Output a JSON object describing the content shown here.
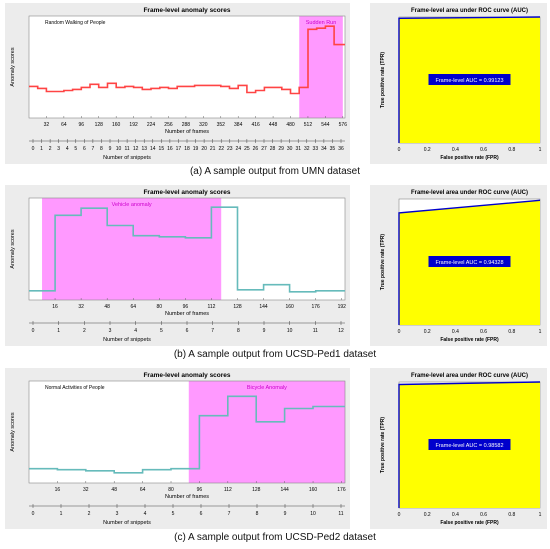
{
  "colors": {
    "panel_bg": "#ececec",
    "anomaly_region": "#ff99ff",
    "roc_fill": "#ffff00",
    "roc_line": "#0000cc",
    "auc_box": "#0000cc",
    "score_line": "#ff4444",
    "score_line_teal": "#66bbbb"
  },
  "rows": [
    {
      "caption": "(a) A sample output from UMN dataset",
      "score_chart": {
        "type": "line",
        "title": "Frame-level anomaly scores",
        "scene_label": "Random Walking of People",
        "anomaly_label": "Sudden Run",
        "xlabel": "Number of frames",
        "ylabel": "Anomaly scores",
        "snippet_label": "Number of snippets",
        "xlim": [
          0,
          580
        ],
        "ylim": [
          0,
          1
        ],
        "frame_ticks": [
          32,
          64,
          96,
          128,
          160,
          192,
          224,
          256,
          288,
          320,
          352,
          384,
          416,
          448,
          480,
          512,
          544,
          576
        ],
        "snippet_ticks": [
          "0",
          "1",
          "2",
          "3",
          "4",
          "5",
          "6",
          "7",
          "8",
          "9",
          "10",
          "11",
          "12",
          "13",
          "14",
          "15",
          "16",
          "17",
          "18",
          "19",
          "20",
          "21",
          "22",
          "23",
          "24",
          "25",
          "26",
          "27",
          "28",
          "29",
          "30",
          "31",
          "32",
          "33",
          "34",
          "35",
          "36"
        ],
        "anomaly_region": [
          496,
          576
        ],
        "line_color": "#ff4444",
        "x": [
          0,
          16,
          32,
          48,
          64,
          80,
          96,
          112,
          128,
          144,
          160,
          176,
          192,
          208,
          224,
          240,
          256,
          272,
          288,
          304,
          320,
          336,
          352,
          368,
          384,
          400,
          416,
          432,
          448,
          464,
          480,
          496,
          512,
          528,
          544,
          560,
          576
        ],
        "values": [
          0.31,
          0.29,
          0.26,
          0.26,
          0.27,
          0.28,
          0.3,
          0.33,
          0.3,
          0.34,
          0.3,
          0.31,
          0.3,
          0.28,
          0.29,
          0.3,
          0.29,
          0.31,
          0.31,
          0.32,
          0.32,
          0.32,
          0.31,
          0.29,
          0.32,
          0.25,
          0.27,
          0.3,
          0.3,
          0.28,
          0.24,
          0.3,
          0.87,
          0.88,
          0.9,
          0.72,
          0.72
        ]
      },
      "roc_chart": {
        "type": "area",
        "title": "Frame-level area under ROC curve (AUC)",
        "xlabel": "False positive rate (FPR)",
        "ylabel": "True positive rate (TPR)",
        "auc_label": "Frame-level AUC = 0.99123",
        "ticks": [
          "0",
          "0.2",
          "0.4",
          "0.6",
          "0.8",
          "1"
        ],
        "fpr": [
          0,
          0,
          1
        ],
        "tpr": [
          0,
          0.99,
          1.0
        ]
      }
    },
    {
      "caption": "(b) A sample output from UCSD-Ped1 dataset",
      "score_chart": {
        "type": "line",
        "title": "Frame-level anomaly scores",
        "scene_label": "",
        "anomaly_label": "Vehicle anomaly",
        "xlabel": "Number of frames",
        "ylabel": "Anomaly scores",
        "snippet_label": "Number of snippets",
        "xlim": [
          0,
          194
        ],
        "ylim": [
          0,
          1
        ],
        "frame_ticks": [
          16,
          32,
          48,
          64,
          80,
          96,
          112,
          128,
          144,
          160,
          176,
          192
        ],
        "snippet_ticks": [
          "0",
          "1",
          "2",
          "3",
          "4",
          "5",
          "6",
          "7",
          "8",
          "9",
          "10",
          "11",
          "12"
        ],
        "anomaly_region": [
          8,
          118
        ],
        "line_color": "#66bbbb",
        "x": [
          0,
          16,
          32,
          48,
          64,
          80,
          96,
          112,
          128,
          144,
          160,
          176,
          192
        ],
        "values": [
          0.09,
          0.83,
          0.9,
          0.73,
          0.63,
          0.62,
          0.61,
          0.91,
          0.1,
          0.15,
          0.08,
          0.09,
          0.09
        ]
      },
      "roc_chart": {
        "type": "area",
        "title": "Frame-level area under ROC curve (AUC)",
        "xlabel": "False positive rate (FPR)",
        "ylabel": "True positive rate (TPR)",
        "auc_label": "Frame-level AUC = 0.94328",
        "ticks": [
          "0",
          "0.2",
          "0.4",
          "0.6",
          "0.8",
          "1"
        ],
        "fpr": [
          0,
          0,
          1
        ],
        "tpr": [
          0,
          0.89,
          0.99
        ]
      }
    },
    {
      "caption": "(c) A sample output from UCSD-Ped2 dataset",
      "score_chart": {
        "type": "line",
        "title": "Frame-level anomaly scores",
        "scene_label": "Normal Activities of People",
        "anomaly_label": "Bicycle Anomaly",
        "xlabel": "Number of frames",
        "ylabel": "Anomaly scores",
        "snippet_label": "Number of snippets",
        "xlim": [
          0,
          178
        ],
        "ylim": [
          0,
          1
        ],
        "frame_ticks": [
          16,
          32,
          48,
          64,
          80,
          96,
          112,
          128,
          144,
          160,
          176
        ],
        "snippet_ticks": [
          "0",
          "1",
          "2",
          "3",
          "4",
          "5",
          "6",
          "7",
          "8",
          "9",
          "10",
          "11"
        ],
        "anomaly_region": [
          90,
          178
        ],
        "line_color": "#66bbbb",
        "x": [
          0,
          16,
          32,
          48,
          64,
          80,
          96,
          112,
          128,
          144,
          160,
          176
        ],
        "values": [
          0.14,
          0.13,
          0.12,
          0.1,
          0.13,
          0.14,
          0.66,
          0.85,
          0.6,
          0.73,
          0.75,
          0.75
        ]
      },
      "roc_chart": {
        "type": "area",
        "title": "Frame-level area under ROC curve (AUC)",
        "xlabel": "False positive rate (FPR)",
        "ylabel": "True positive rate (TPR)",
        "auc_label": "Frame-level AUC = 0.98582",
        "ticks": [
          "0",
          "0.2",
          "0.4",
          "0.6",
          "0.8",
          "1"
        ],
        "fpr": [
          0,
          0,
          1
        ],
        "tpr": [
          0,
          0.98,
          1.0
        ]
      }
    }
  ]
}
